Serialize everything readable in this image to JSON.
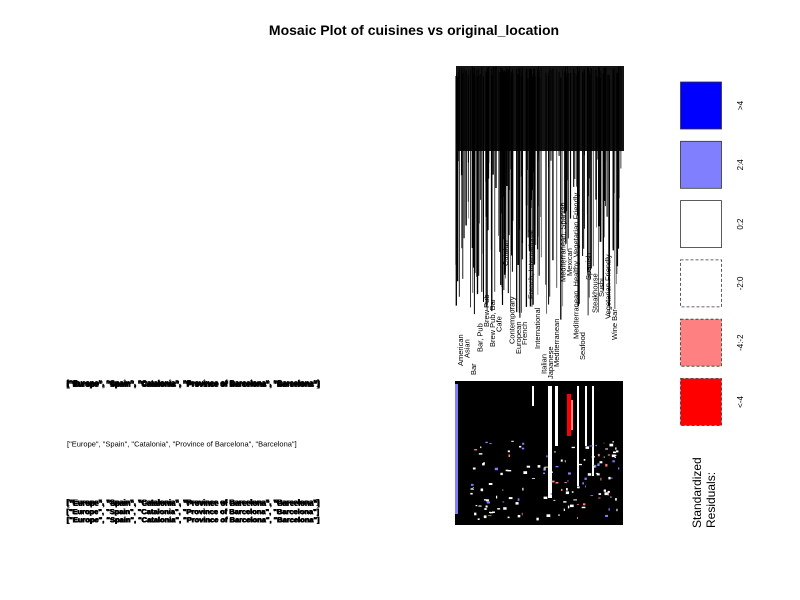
{
  "chart_data": {
    "type": "mosaic",
    "title": "Mosaic Plot of cuisines vs original_location",
    "xvar": "cuisines",
    "yvar": "original_location",
    "column_labels": [
      "American",
      "Asian",
      "Bar",
      "Bar, Pub",
      "Brew Pub",
      "Brew Pub, Bar",
      "Cafe",
      "Catalan",
      "Contemporary",
      "European",
      "French",
      "French, International",
      "International",
      "Italian",
      "Japanese",
      "Mediterranean",
      "Mediterranean, Spanish",
      "Mexican",
      "Mediterranean, Healthy, Vegetarian Friendly",
      "Seafood",
      "Spanish",
      "Steakhouse",
      "Sushi",
      "Vegetarian Friendly",
      "Wine Bar"
    ],
    "row_labels": [
      "[\"Europe\", \"Spain\", \"Catalonia\", \"Province of Barcelona\", \"Barcelona\"]"
    ],
    "legend": {
      "title_line1": "Standardized",
      "title_line2": "Residuals:",
      "entries": [
        {
          "label": ">4",
          "fill": "#0000ff",
          "dashed": false
        },
        {
          "label": "2:4",
          "fill": "#8080ff",
          "dashed": false
        },
        {
          "label": "0:2",
          "fill": "#ffffff",
          "dashed": false
        },
        {
          "label": "-2:0",
          "fill": "#ffffff",
          "dashed": true
        },
        {
          "label": "-4:-2",
          "fill": "#ff8080",
          "dashed": true
        },
        {
          "label": "<-4",
          "fill": "#ff0000",
          "dashed": true
        }
      ]
    }
  }
}
